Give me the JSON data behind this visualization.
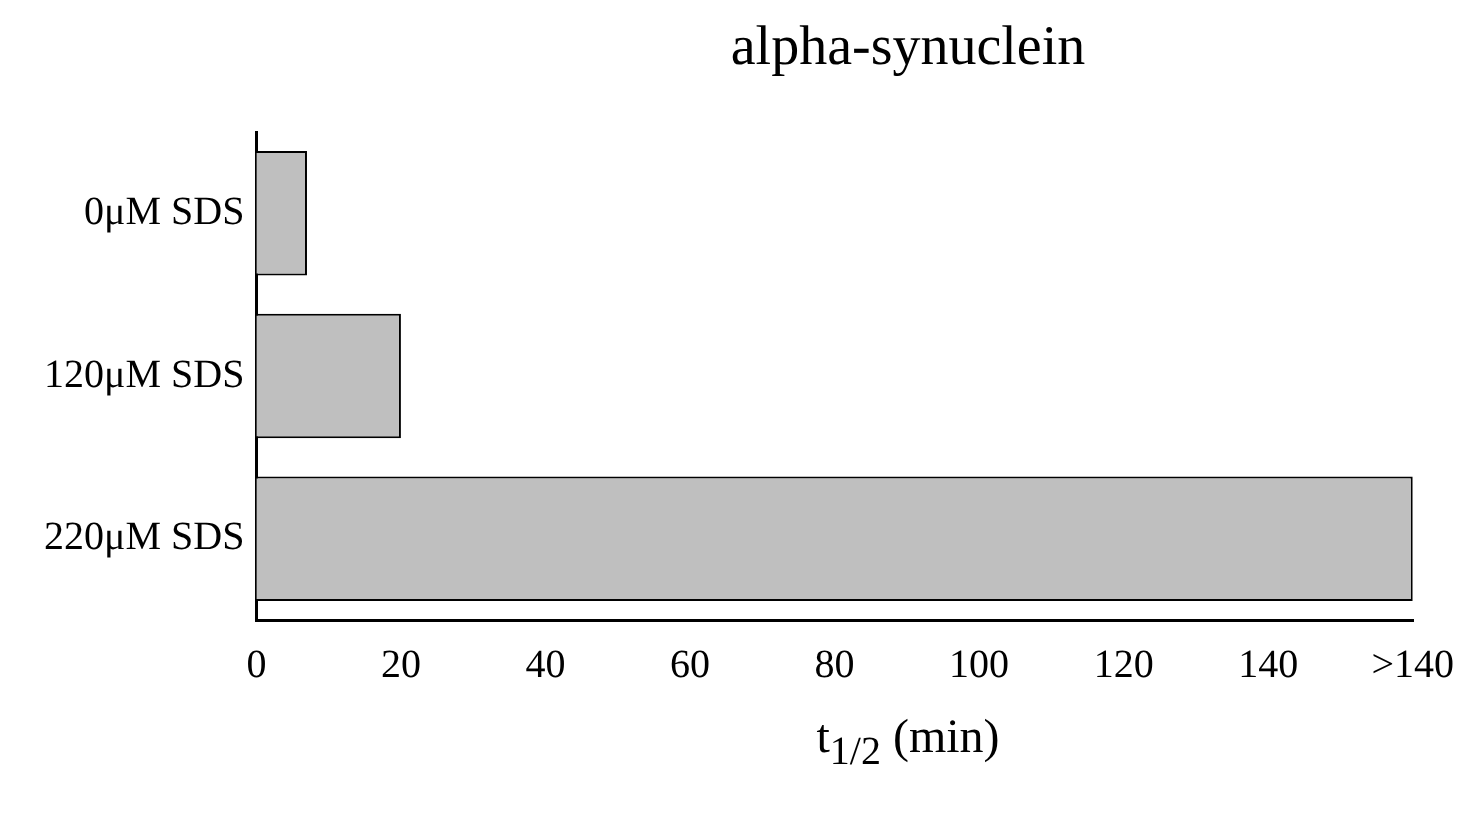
{
  "chart_data": {
    "type": "bar",
    "orientation": "horizontal",
    "title": "alpha-synuclein",
    "xlabel": "t$_{1/2}$ (min)",
    "categories": [
      "0μM SDS",
      "120μM SDS",
      "220μM SDS"
    ],
    "values": [
      7,
      20,
      160
    ],
    "color": "#bfbfbf",
    "xlim": [
      0,
      160
    ],
    "xticks": [
      0,
      20,
      40,
      60,
      80,
      100,
      120,
      140,
      {
        "value": 160,
        "label": ">140"
      }
    ],
    "grid": false
  }
}
